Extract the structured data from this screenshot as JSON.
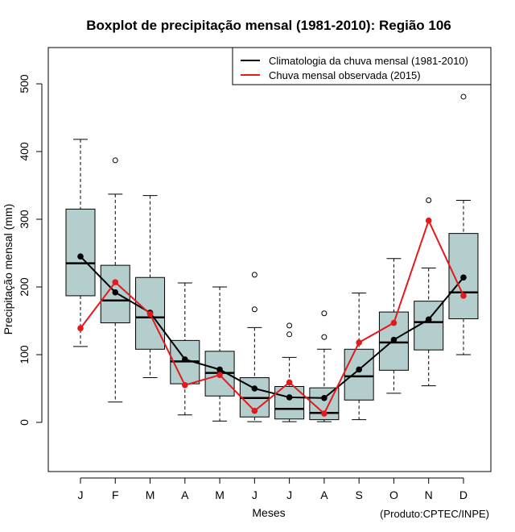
{
  "chart_data": {
    "type": "boxplot",
    "title": "Boxplot de precipitação mensal (1981-2010): Região 106",
    "xlabel": "Meses",
    "ylabel": "Precipitação mensal (mm)",
    "credit": "(Produto:CPTEC/INPE)",
    "ylim": [
      -75,
      555
    ],
    "yticks": [
      0,
      100,
      200,
      300,
      400,
      500
    ],
    "categories": [
      "J",
      "F",
      "M",
      "A",
      "M",
      "J",
      "J",
      "A",
      "S",
      "O",
      "N",
      "D"
    ],
    "boxes": [
      {
        "min": 112,
        "q1": 187,
        "median": 235,
        "q3": 315,
        "max": 418,
        "outliers": []
      },
      {
        "min": 30,
        "q1": 147,
        "median": 180,
        "q3": 232,
        "max": 337,
        "outliers": [
          387
        ]
      },
      {
        "min": 66,
        "q1": 108,
        "median": 155,
        "q3": 214,
        "max": 335,
        "outliers": []
      },
      {
        "min": 11,
        "q1": 57,
        "median": 90,
        "q3": 121,
        "max": 206,
        "outliers": []
      },
      {
        "min": 2,
        "q1": 39,
        "median": 73,
        "q3": 105,
        "max": 200,
        "outliers": []
      },
      {
        "min": 1,
        "q1": 8,
        "median": 36,
        "q3": 66,
        "max": 140,
        "outliers": [
          167,
          218
        ]
      },
      {
        "min": 1,
        "q1": 5,
        "median": 20,
        "q3": 53,
        "max": 96,
        "outliers": [
          130,
          143
        ]
      },
      {
        "min": 1,
        "q1": 4,
        "median": 14,
        "q3": 51,
        "max": 108,
        "outliers": [
          126,
          161
        ]
      },
      {
        "min": 4,
        "q1": 33,
        "median": 68,
        "q3": 108,
        "max": 191,
        "outliers": []
      },
      {
        "min": 43,
        "q1": 77,
        "median": 118,
        "q3": 163,
        "max": 242,
        "outliers": []
      },
      {
        "min": 54,
        "q1": 107,
        "median": 148,
        "q3": 179,
        "max": 228,
        "outliers": [
          328
        ]
      },
      {
        "min": 100,
        "q1": 153,
        "median": 192,
        "q3": 279,
        "max": 328,
        "outliers": [
          481
        ]
      }
    ],
    "series": [
      {
        "name": "Climatologia da chuva mensal (1981-2010)",
        "color": "#000000",
        "values": [
          245,
          192,
          162,
          93,
          78,
          50,
          37,
          36,
          78,
          122,
          152,
          214
        ]
      },
      {
        "name": "Chuva mensal observada (2015)",
        "color": "#e31a1c",
        "values": [
          139,
          207,
          160,
          55,
          70,
          17,
          59,
          13,
          118,
          147,
          298,
          187
        ]
      }
    ],
    "legend_position": "top-right",
    "box_color": "#b4cdcd"
  }
}
